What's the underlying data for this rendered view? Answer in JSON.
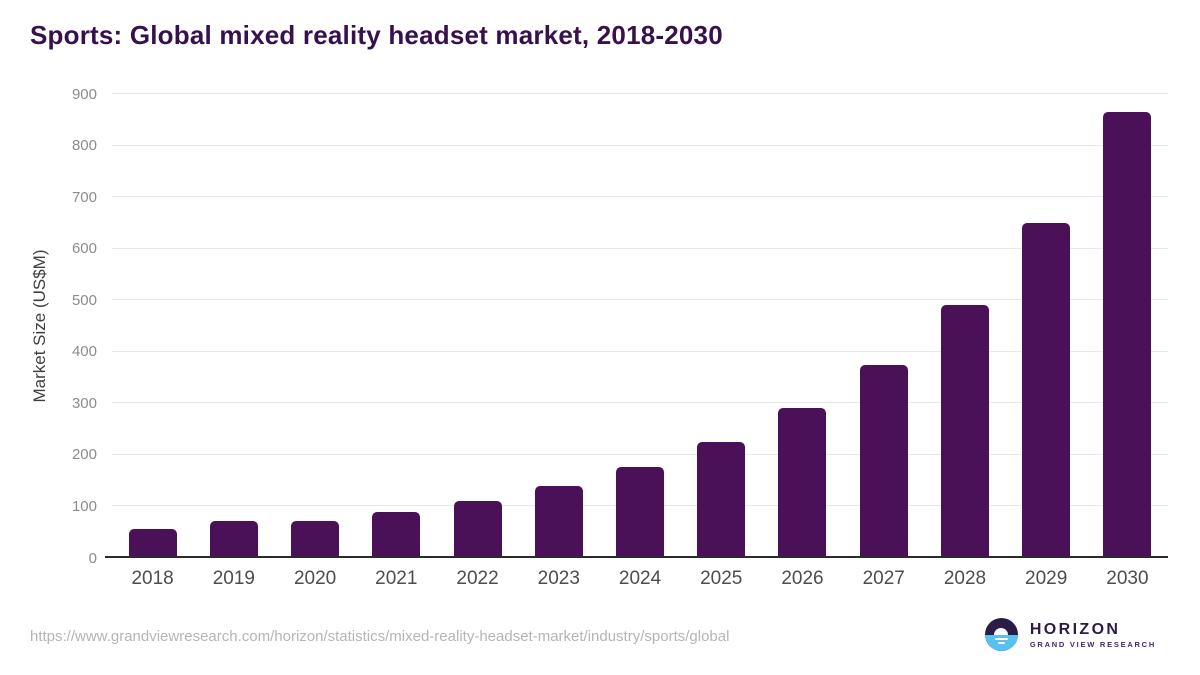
{
  "chart_data": {
    "type": "bar",
    "title": "Sports: Global mixed reality headset market, 2018-2030",
    "categories": [
      "2018",
      "2019",
      "2020",
      "2021",
      "2022",
      "2023",
      "2024",
      "2025",
      "2026",
      "2027",
      "2028",
      "2029",
      "2030"
    ],
    "values": [
      52,
      69,
      68,
      86,
      108,
      137,
      173,
      222,
      288,
      373,
      489,
      648,
      864
    ],
    "xlabel": "",
    "ylabel": "Market Size (US$M)",
    "ylim": [
      0,
      900
    ],
    "ytick_step": 100,
    "yticks": [
      0,
      100,
      200,
      300,
      400,
      500,
      600,
      700,
      800,
      900
    ],
    "grid": true,
    "legend": "none",
    "bar_color": "#4a1158"
  },
  "colors": {
    "title": "#37104e",
    "bar": "#4a1158",
    "gridline": "#e8e8e8",
    "axis_line": "#2b2b2b",
    "y_tick": "#8c8c8c",
    "x_tick": "#4d4d4d",
    "source_url": "#b5b5b5",
    "logo_purple": "#2b1b49",
    "logo_blue": "#57c2f1"
  },
  "footer": {
    "source_url": "https://www.grandviewresearch.com/horizon/statistics/mixed-reality-headset-market/industry/sports/global",
    "logo": {
      "name": "HORIZON",
      "subtitle": "GRAND VIEW RESEARCH"
    }
  }
}
